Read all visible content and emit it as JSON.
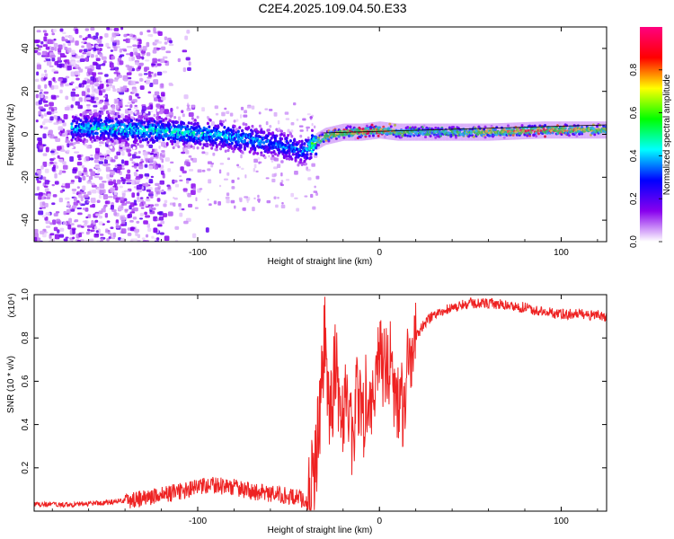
{
  "title": "C2E4.2025.109.04.50.E33",
  "chart_data": [
    {
      "type": "heatmap",
      "title": "C2E4.2025.109.04.50.E33",
      "xlabel": "Height of straight line (km)",
      "ylabel": "Frequency (Hz)",
      "xlim": [
        -190,
        125
      ],
      "ylim": [
        -50,
        50
      ],
      "xticks": [
        -100,
        0,
        100
      ],
      "xtick_labels": [
        "-100",
        "0",
        "100"
      ],
      "yticks": [
        -40,
        -20,
        0,
        20,
        40
      ],
      "ytick_labels": [
        "-40",
        "-20",
        "0",
        "20",
        "40"
      ],
      "grid": false,
      "colorbar": {
        "label": "Normalized spectral amplitude",
        "range": [
          0,
          1
        ],
        "ticks": [
          0.0,
          0.2,
          0.4,
          0.6,
          0.8
        ],
        "tick_labels": [
          "0.0",
          "0.2",
          "0.4",
          "0.6",
          "0.8"
        ],
        "colormap": "rainbow",
        "stops": [
          "#ffffff",
          "#8800ee",
          "#0000ff",
          "#00ffff",
          "#00ff00",
          "#ffff00",
          "#ff0000",
          "#ff0080"
        ]
      },
      "ridge": {
        "x": [
          -170,
          -150,
          -130,
          -110,
          -90,
          -75,
          -60,
          -50,
          -42,
          -38,
          -30,
          -20,
          -10,
          0,
          10,
          30,
          60,
          90,
          110,
          125
        ],
        "center_freq": [
          3,
          3,
          2,
          1,
          0,
          -2,
          -4,
          -6,
          -8,
          -5,
          -1,
          1,
          1,
          2,
          1,
          1,
          1,
          2,
          2,
          2
        ],
        "amplitude": [
          0.4,
          0.45,
          0.45,
          0.45,
          0.42,
          0.4,
          0.38,
          0.35,
          0.35,
          0.55,
          0.7,
          0.8,
          0.85,
          0.8,
          0.6,
          0.5,
          0.7,
          0.8,
          0.7,
          0.6
        ]
      }
    },
    {
      "type": "line",
      "xlabel": "Height of straight line (km)",
      "ylabel": "SNR (10 * v/v)",
      "y_multiplier": "(x10⁴)",
      "xlim": [
        -190,
        125
      ],
      "ylim": [
        0,
        1.0
      ],
      "xticks": [
        -100,
        0,
        100
      ],
      "xtick_labels": [
        "-100",
        "0",
        "100"
      ],
      "yticks": [
        0.2,
        0.4,
        0.6,
        0.8,
        1.0
      ],
      "ytick_labels": [
        "0.2",
        "0.4",
        "0.6",
        "0.8",
        "1.0"
      ],
      "grid": false,
      "series": [
        {
          "color": "#ee2222",
          "x": [
            -190,
            -170,
            -150,
            -130,
            -110,
            -100,
            -90,
            -80,
            -70,
            -60,
            -50,
            -45,
            -40,
            -36,
            -33,
            -30,
            -27,
            -24,
            -21,
            -18,
            -15,
            -12,
            -9,
            -6,
            -3,
            0,
            3,
            6,
            9,
            12,
            15,
            20,
            25,
            30,
            40,
            50,
            60,
            70,
            80,
            90,
            100,
            110,
            125
          ],
          "y": [
            0.03,
            0.03,
            0.04,
            0.06,
            0.09,
            0.11,
            0.12,
            0.11,
            0.09,
            0.08,
            0.07,
            0.06,
            0.05,
            0.15,
            0.45,
            0.8,
            0.4,
            0.75,
            0.35,
            0.6,
            0.3,
            0.55,
            0.45,
            0.6,
            0.55,
            0.8,
            0.6,
            0.72,
            0.55,
            0.45,
            0.65,
            0.8,
            0.87,
            0.91,
            0.94,
            0.96,
            0.96,
            0.95,
            0.94,
            0.92,
            0.91,
            0.91,
            0.9
          ]
        }
      ]
    }
  ]
}
